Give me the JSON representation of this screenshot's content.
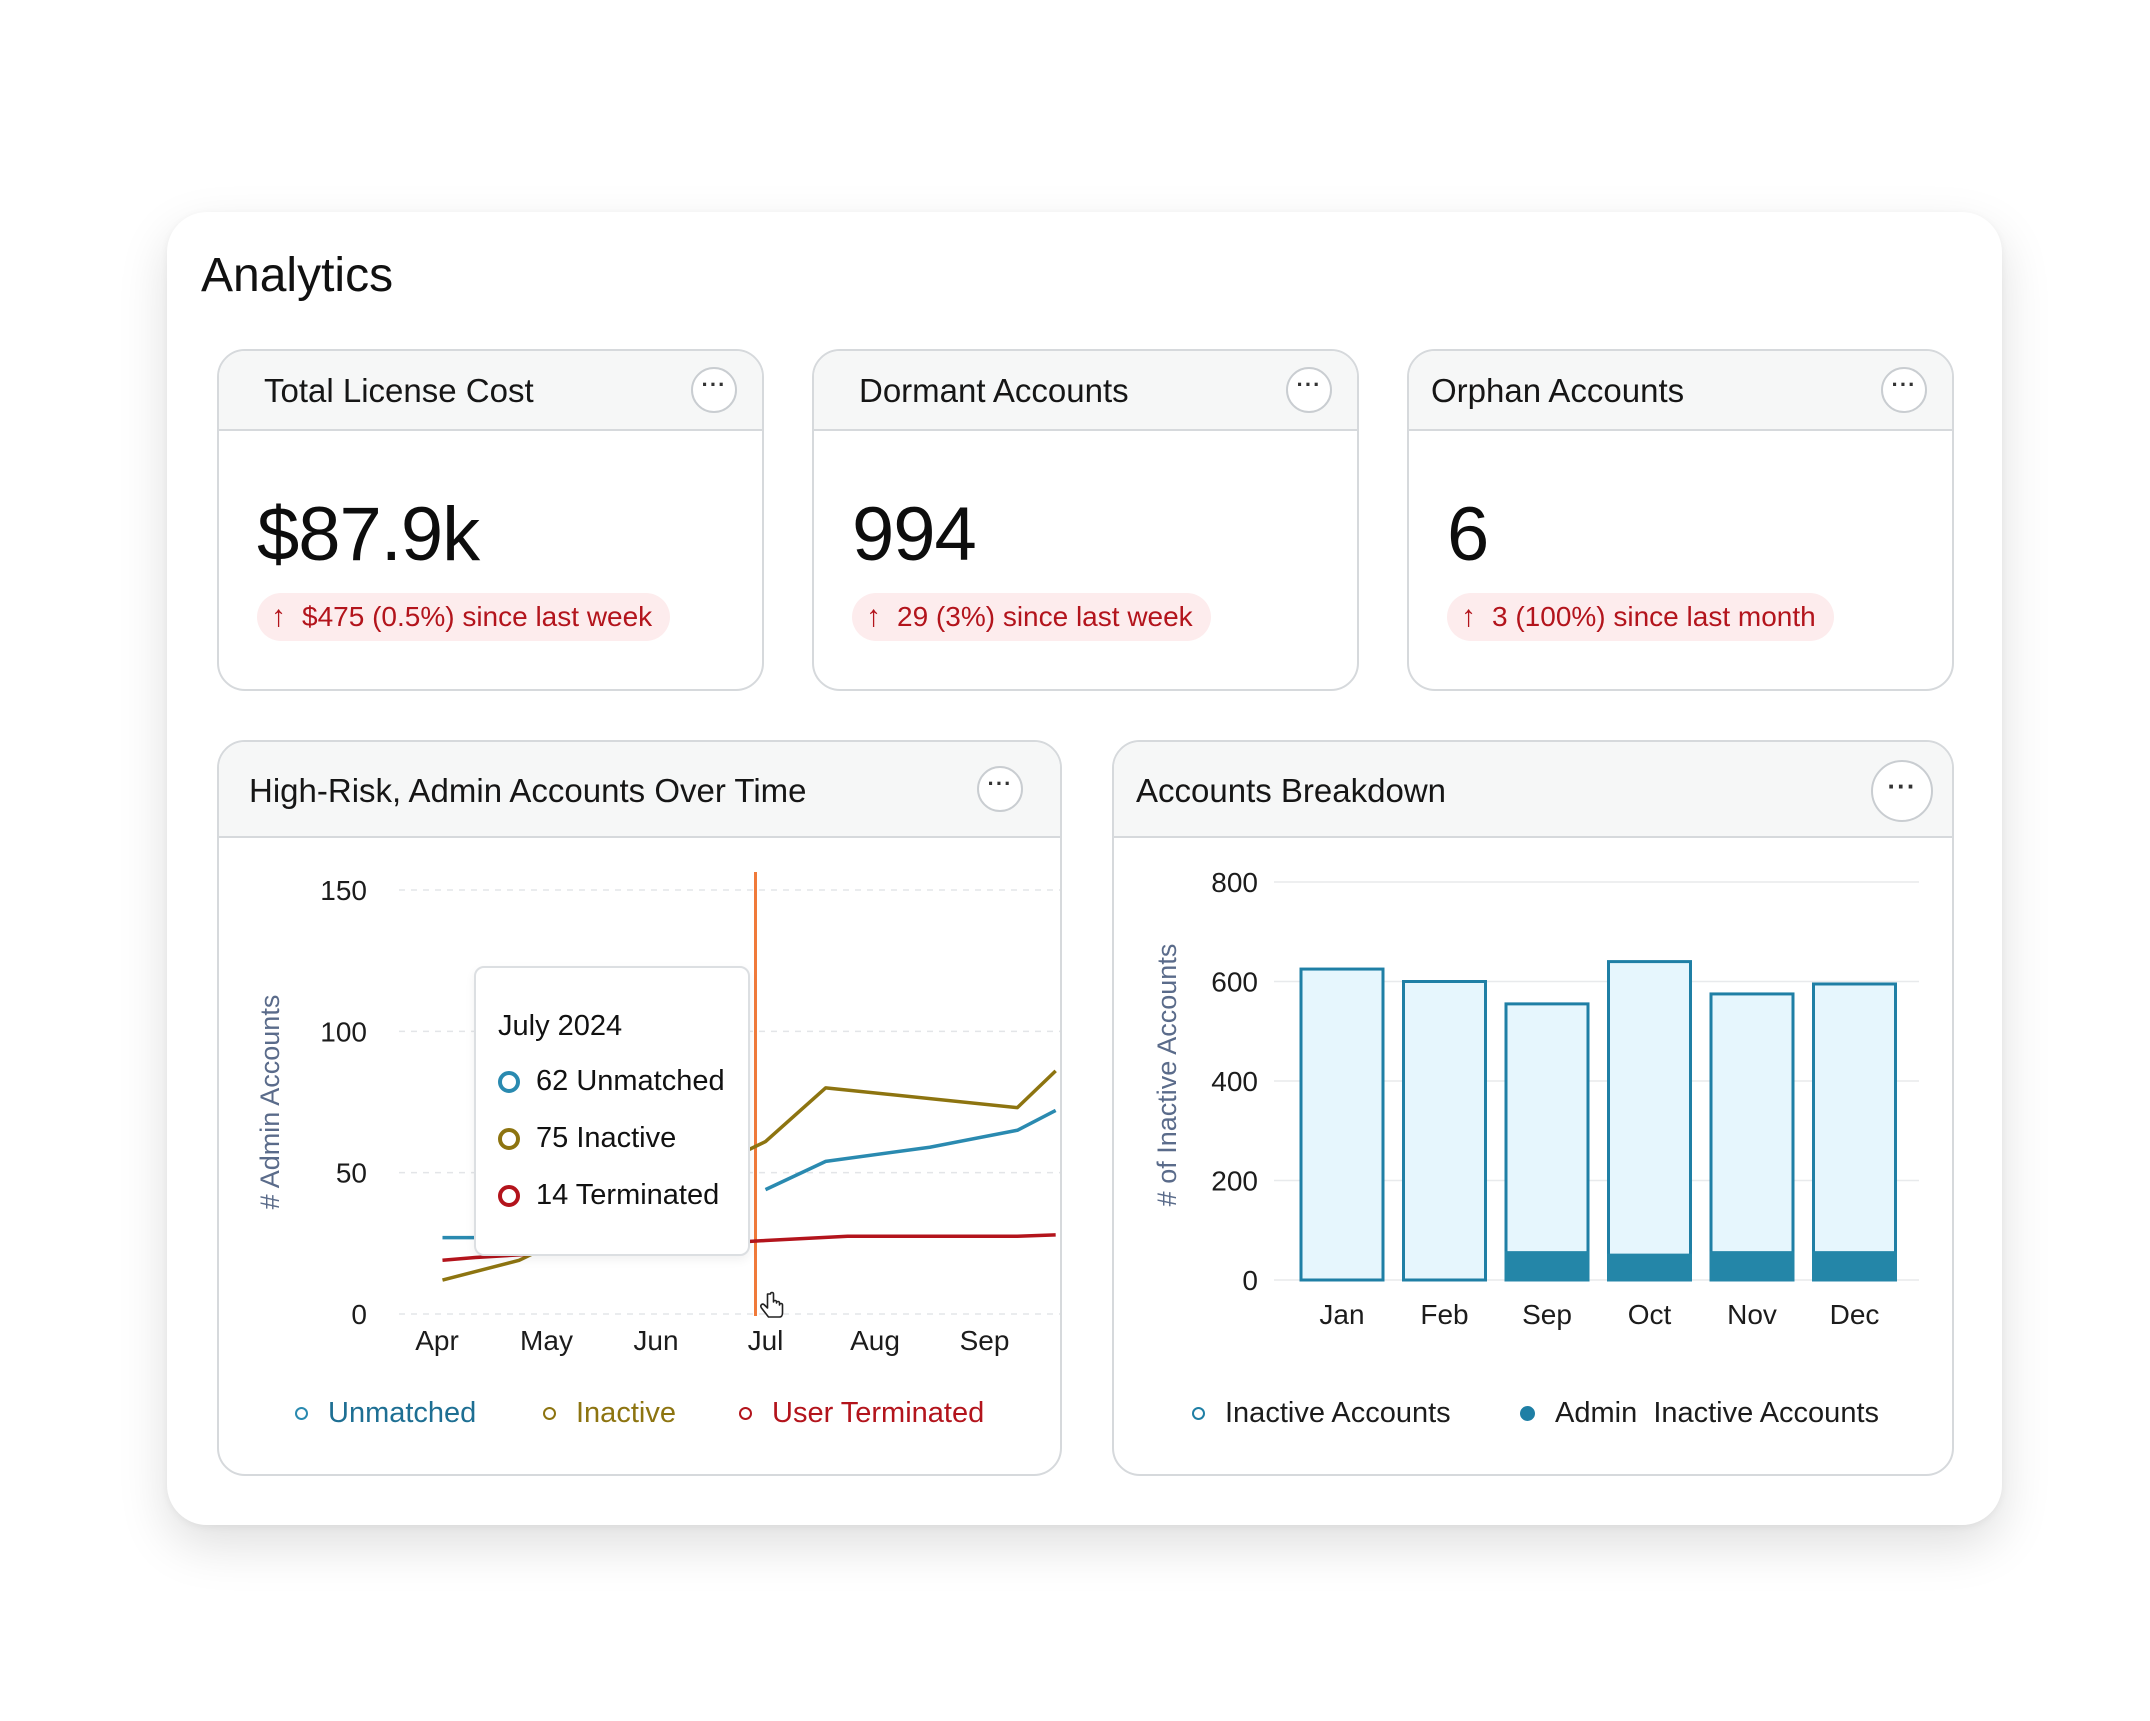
{
  "page": {
    "title": "Analytics"
  },
  "metrics": [
    {
      "title": "Total License Cost",
      "value": "$87.9k",
      "delta": "$475 (0.5%) since last week",
      "delta_icon": "arrow-up-icon"
    },
    {
      "title": "Dormant Accounts",
      "value": "994",
      "delta": "29 (3%) since last week",
      "delta_icon": "arrow-up-icon"
    },
    {
      "title": "Orphan Accounts",
      "value": "6",
      "delta": "3 (100%) since last month",
      "delta_icon": "arrow-up-icon"
    }
  ],
  "more_icon": "ellipsis-icon",
  "colors": {
    "unmatched": "#2a8ab0",
    "inactive": "#8d7410",
    "terminated": "#b3141c",
    "cursor_line": "#f07a3a",
    "bar_fill": "#e6f6fd",
    "bar_stroke": "#1f7fa5",
    "bar_admin": "#2486a8",
    "delta_text": "#b3141c",
    "delta_bg": "#fdeced"
  },
  "line_chart_card": {
    "title": "High-Risk, Admin Accounts Over Time",
    "tooltip": {
      "title": "July 2024",
      "rows": [
        {
          "key": "unmatched",
          "text": "62 Unmatched"
        },
        {
          "key": "inactive",
          "text": "75 Inactive"
        },
        {
          "key": "terminated",
          "text": "14 Terminated"
        }
      ]
    },
    "legend": [
      {
        "key": "unmatched",
        "label": "Unmatched"
      },
      {
        "key": "inactive",
        "label": "Inactive"
      },
      {
        "key": "terminated",
        "label": "User Terminated"
      }
    ]
  },
  "bar_chart_card": {
    "title": "Accounts Breakdown",
    "legend": [
      {
        "key": "inactive",
        "label": "Inactive Accounts",
        "filled": false
      },
      {
        "key": "admin",
        "label": "Admin  Inactive Accounts",
        "filled": true
      }
    ]
  },
  "chart_data": [
    {
      "type": "line",
      "title": "High-Risk, Admin Accounts Over Time",
      "ylabel": "# Admin Accounts",
      "xlabel": "",
      "ylim": [
        0,
        150
      ],
      "yticks": [
        0,
        50,
        100,
        150
      ],
      "categories": [
        "Apr",
        "May",
        "Jun",
        "Jul",
        "Aug",
        "Sep"
      ],
      "highlight_category": "Jul",
      "grid": true,
      "legend_position": "bottom",
      "series": [
        {
          "name": "Unmatched",
          "key": "unmatched",
          "x": [
            3.0,
            3.55,
            4.5,
            5.3,
            5.65
          ],
          "y": [
            44,
            54,
            59,
            65,
            72
          ],
          "partial": {
            "x": [
              0.05,
              0.35
            ],
            "y": [
              27,
              27
            ]
          }
        },
        {
          "name": "Inactive",
          "key": "inactive",
          "x": [
            0.05,
            0.75,
            3.0,
            3.55,
            5.3,
            5.65
          ],
          "y": [
            12,
            19,
            61,
            80,
            73,
            86
          ]
        },
        {
          "name": "User Terminated",
          "key": "terminated",
          "x": [
            0.05,
            0.35,
            3.0,
            3.75,
            5.3,
            5.65
          ],
          "y": [
            19,
            20,
            26,
            27.5,
            27.5,
            28
          ]
        }
      ]
    },
    {
      "type": "bar",
      "title": "Accounts Breakdown",
      "ylabel": "# of Inactive Accounts",
      "xlabel": "",
      "ylim": [
        0,
        800
      ],
      "yticks": [
        0,
        200,
        400,
        600,
        800
      ],
      "categories": [
        "Jan",
        "Feb",
        "Sep",
        "Oct",
        "Nov",
        "Dec"
      ],
      "grid": true,
      "legend_position": "bottom",
      "series": [
        {
          "name": "Inactive Accounts",
          "key": "inactive",
          "values": [
            625,
            600,
            555,
            640,
            575,
            595
          ]
        },
        {
          "name": "Admin  Inactive Accounts",
          "key": "admin",
          "values": [
            0,
            0,
            55,
            50,
            55,
            55
          ]
        }
      ]
    }
  ]
}
